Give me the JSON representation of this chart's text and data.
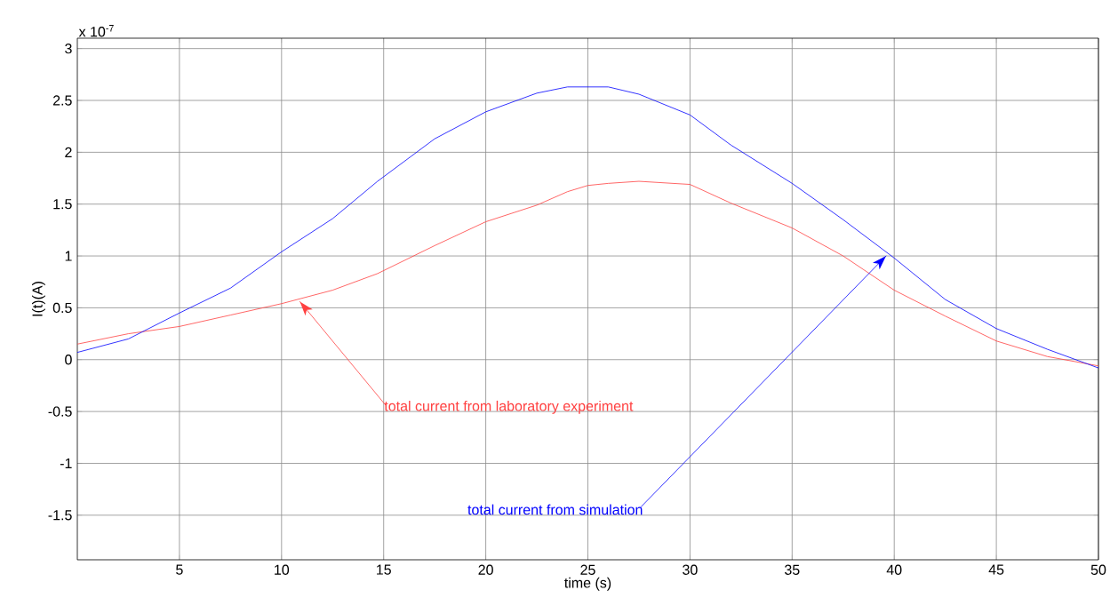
{
  "chart_data": {
    "type": "line",
    "xlabel": "time (s)",
    "ylabel": "I(t)(A)",
    "x": [
      0,
      2.5,
      5,
      7.5,
      10,
      12.5,
      14.7,
      17.5,
      20,
      22.5,
      24,
      25,
      26,
      27.5,
      30,
      32,
      35,
      37.5,
      40,
      42.5,
      45,
      47.5,
      50
    ],
    "series": [
      {
        "color": "#ff4040",
        "values": [
          0.15,
          0.25,
          0.32,
          0.43,
          0.54,
          0.67,
          0.83,
          1.1,
          1.33,
          1.49,
          1.62,
          1.68,
          1.7,
          1.72,
          1.69,
          1.51,
          1.27,
          1.0,
          0.67,
          0.42,
          0.18,
          0.03,
          -0.06
        ]
      },
      {
        "color": "#0000ff",
        "values": [
          0.07,
          0.2,
          0.45,
          0.69,
          1.04,
          1.36,
          1.72,
          2.13,
          2.39,
          2.57,
          2.63,
          2.63,
          2.63,
          2.56,
          2.36,
          2.07,
          1.7,
          1.35,
          0.98,
          0.58,
          0.3,
          0.1,
          -0.08
        ]
      }
    ],
    "xlim": [
      0,
      50
    ],
    "ylim": [
      -1.93,
      3.1
    ],
    "xticks": [
      5,
      10,
      15,
      20,
      25,
      30,
      35,
      40,
      45,
      50
    ],
    "yticks": [
      -1.5,
      -1,
      -0.5,
      0,
      0.5,
      1,
      1.5,
      2,
      2.5,
      3
    ],
    "grid": true,
    "line_style": "solid",
    "marker": "none",
    "annotations": [
      {
        "text": "total current from laboratory experiment",
        "x": 10.9,
        "y": 0.56
      },
      {
        "text": "total current from simulation",
        "x": 39.6,
        "y": 1.0
      },
      "x 10$^{-7}$"
    ]
  }
}
